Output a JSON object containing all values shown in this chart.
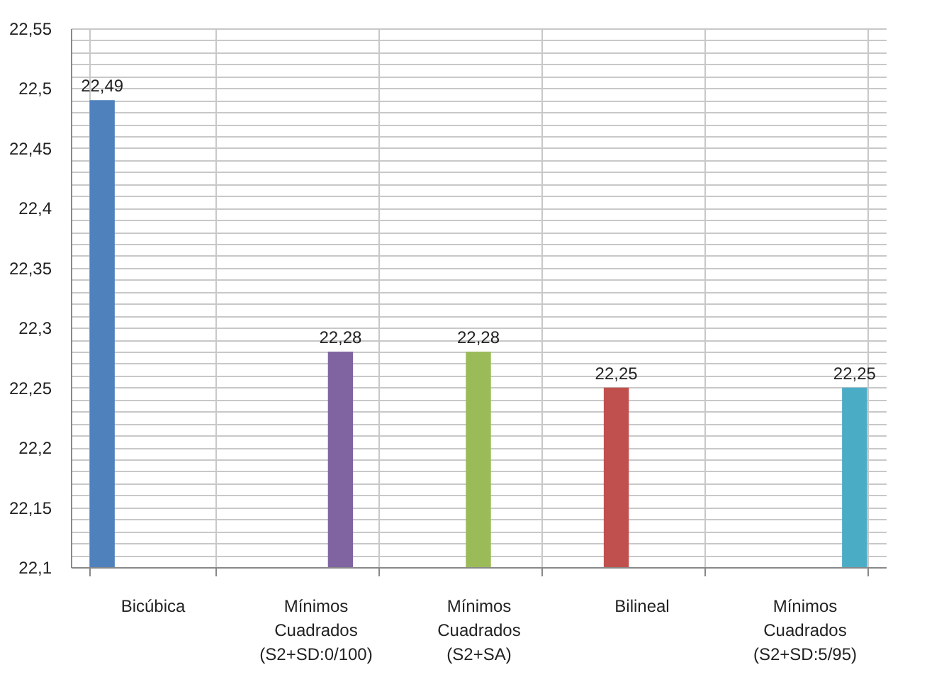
{
  "chart_data": {
    "type": "bar",
    "categories": [
      "Bicúbica",
      "Mínimos Cuadrados (S2+SD:0/100)",
      "Mínimos Cuadrados (S2+SA)",
      "Bilineal",
      "Mínimos Cuadrados (S2+SD:5/95)"
    ],
    "series": [
      {
        "color": "#4f81bd",
        "values": [
          22.49,
          null,
          null,
          null,
          null
        ],
        "value_labels": [
          "22,49",
          null,
          null,
          null,
          null
        ]
      },
      {
        "color": "#c0504d",
        "values": [
          null,
          null,
          null,
          22.25,
          null
        ],
        "value_labels": [
          null,
          null,
          null,
          "22,25",
          null
        ]
      },
      {
        "color": "#9bbb59",
        "values": [
          null,
          null,
          22.28,
          null,
          null
        ],
        "value_labels": [
          null,
          null,
          "22,28",
          null,
          null
        ]
      },
      {
        "color": "#8064a2",
        "values": [
          null,
          22.28,
          null,
          null,
          null
        ],
        "value_labels": [
          null,
          "22,28",
          null,
          null,
          null
        ]
      },
      {
        "color": "#4bacc6",
        "values": [
          null,
          null,
          null,
          null,
          22.25
        ],
        "value_labels": [
          null,
          null,
          null,
          null,
          "22,25"
        ]
      }
    ],
    "ylim": [
      22.1,
      22.55
    ],
    "yticks": [
      {
        "value": 22.1,
        "label": "22,1"
      },
      {
        "value": 22.11,
        "label": null
      },
      {
        "value": 22.12,
        "label": null
      },
      {
        "value": 22.13,
        "label": null
      },
      {
        "value": 22.14,
        "label": null
      },
      {
        "value": 22.15,
        "label": "22,15"
      },
      {
        "value": 22.16,
        "label": null
      },
      {
        "value": 22.17,
        "label": null
      },
      {
        "value": 22.18,
        "label": null
      },
      {
        "value": 22.19,
        "label": null
      },
      {
        "value": 22.2,
        "label": "22,2"
      },
      {
        "value": 22.21,
        "label": null
      },
      {
        "value": 22.22,
        "label": null
      },
      {
        "value": 22.23,
        "label": null
      },
      {
        "value": 22.24,
        "label": null
      },
      {
        "value": 22.25,
        "label": "22,25"
      },
      {
        "value": 22.26,
        "label": null
      },
      {
        "value": 22.27,
        "label": null
      },
      {
        "value": 22.28,
        "label": null
      },
      {
        "value": 22.29,
        "label": null
      },
      {
        "value": 22.3,
        "label": "22,3"
      },
      {
        "value": 22.31,
        "label": null
      },
      {
        "value": 22.32,
        "label": null
      },
      {
        "value": 22.33,
        "label": null
      },
      {
        "value": 22.34,
        "label": null
      },
      {
        "value": 22.35,
        "label": "22,35"
      },
      {
        "value": 22.36,
        "label": null
      },
      {
        "value": 22.37,
        "label": null
      },
      {
        "value": 22.38,
        "label": null
      },
      {
        "value": 22.39,
        "label": null
      },
      {
        "value": 22.4,
        "label": "22,4"
      },
      {
        "value": 22.41,
        "label": null
      },
      {
        "value": 22.42,
        "label": null
      },
      {
        "value": 22.43,
        "label": null
      },
      {
        "value": 22.44,
        "label": null
      },
      {
        "value": 22.45,
        "label": "22,45"
      },
      {
        "value": 22.46,
        "label": null
      },
      {
        "value": 22.47,
        "label": null
      },
      {
        "value": 22.48,
        "label": null
      },
      {
        "value": 22.49,
        "label": null
      },
      {
        "value": 22.5,
        "label": "22,5"
      },
      {
        "value": 22.51,
        "label": null
      },
      {
        "value": 22.52,
        "label": null
      },
      {
        "value": 22.53,
        "label": null
      },
      {
        "value": 22.54,
        "label": null
      },
      {
        "value": 22.55,
        "label": "22,55"
      }
    ],
    "grid": true
  }
}
